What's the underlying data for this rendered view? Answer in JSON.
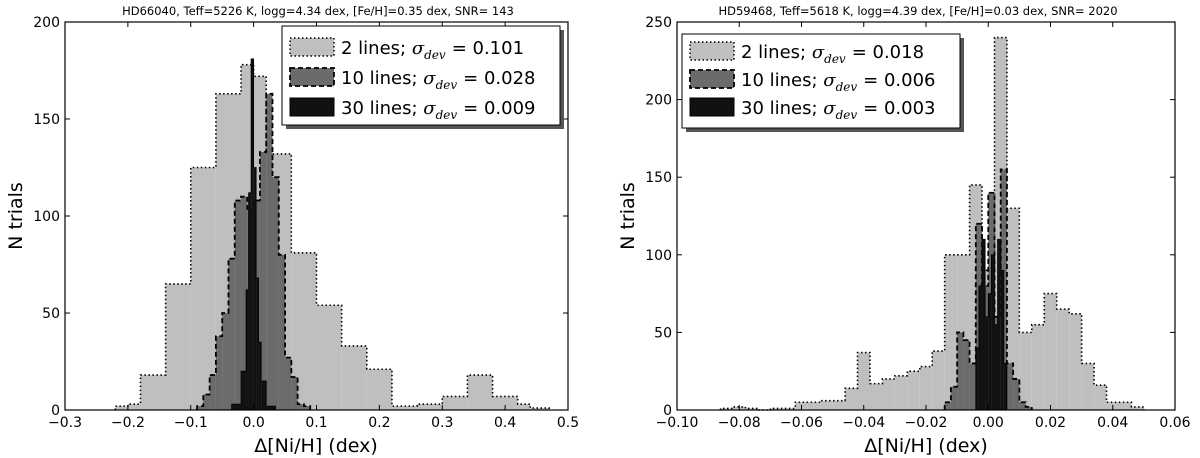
{
  "chart_data": [
    {
      "type": "bar",
      "title": "HD66040, Teff=5226 K, logg=4.34 dex, [Fe/H]=0.35 dex, SNR= 143",
      "xlabel": "Δ[Ni/H] (dex)",
      "ylabel": "N trials",
      "xlim": [
        -0.3,
        0.5
      ],
      "ylim": [
        0,
        200
      ],
      "xticks": [
        -0.3,
        -0.2,
        -0.1,
        0.0,
        0.1,
        0.2,
        0.3,
        0.4,
        0.5
      ],
      "yticks": [
        0,
        50,
        100,
        150,
        200
      ],
      "xtick_labels": [
        "−0.3",
        "−0.2",
        "−0.1",
        "0.0",
        "0.1",
        "0.2",
        "0.3",
        "0.4",
        "0.5"
      ],
      "ytick_labels": [
        "0",
        "50",
        "100",
        "150",
        "200"
      ],
      "legend_position": "top-right",
      "series": [
        {
          "name": "2 lines",
          "sigma_label": "σ",
          "sigma_sub": "dev",
          "sigma_value": "= 0.101",
          "color": "#bfbfbf",
          "edges": [
            -0.22,
            -0.2,
            -0.18,
            -0.14,
            -0.1,
            -0.06,
            -0.02,
            0.0,
            0.02,
            0.06,
            0.1,
            0.14,
            0.18,
            0.22,
            0.26,
            0.3,
            0.34,
            0.38,
            0.42,
            0.44,
            0.47
          ],
          "counts": [
            2,
            3,
            18,
            65,
            125,
            163,
            178,
            172,
            132,
            81,
            54,
            33,
            21,
            2,
            3,
            7,
            18,
            7,
            3,
            1
          ]
        },
        {
          "name": "10 lines",
          "sigma_label": "σ",
          "sigma_sub": "dev",
          "sigma_value": "= 0.028",
          "color": "#6b6b6b",
          "edges": [
            -0.09,
            -0.08,
            -0.07,
            -0.06,
            -0.05,
            -0.04,
            -0.03,
            -0.02,
            -0.01,
            0.0,
            0.01,
            0.02,
            0.03,
            0.04,
            0.05,
            0.06,
            0.07,
            0.08,
            0.09
          ],
          "counts": [
            2,
            8,
            18,
            38,
            50,
            78,
            108,
            110,
            103,
            108,
            133,
            163,
            120,
            80,
            27,
            17,
            3,
            2
          ]
        },
        {
          "name": "30 lines",
          "sigma_label": "σ",
          "sigma_sub": "dev",
          "sigma_value": "= 0.009",
          "color": "#111111",
          "edges": [
            -0.035,
            -0.02,
            -0.012,
            -0.008,
            -0.004,
            0.0,
            0.004,
            0.008,
            0.012,
            0.02,
            0.035
          ],
          "counts": [
            3,
            20,
            62,
            112,
            181,
            125,
            68,
            35,
            15,
            2
          ]
        }
      ]
    },
    {
      "type": "bar",
      "title": "HD59468, Teff=5618 K, logg=4.39 dex, [Fe/H]=0.03 dex, SNR= 2020",
      "xlabel": "Δ[Ni/H] (dex)",
      "ylabel": "N trials",
      "xlim": [
        -0.1,
        0.06
      ],
      "ylim": [
        0,
        250
      ],
      "xticks": [
        -0.1,
        -0.08,
        -0.06,
        -0.04,
        -0.02,
        0.0,
        0.02,
        0.04,
        0.06
      ],
      "yticks": [
        0,
        50,
        100,
        150,
        200,
        250
      ],
      "xtick_labels": [
        "−0.10",
        "−0.08",
        "−0.06",
        "−0.04",
        "−0.02",
        "0.00",
        "0.02",
        "0.04",
        "0.06"
      ],
      "ytick_labels": [
        "0",
        "50",
        "100",
        "150",
        "200",
        "250"
      ],
      "legend_position": "top-left",
      "series": [
        {
          "name": "2 lines",
          "sigma_label": "σ",
          "sigma_sub": "dev",
          "sigma_value": "= 0.018",
          "color": "#bfbfbf",
          "edges": [
            -0.086,
            -0.082,
            -0.078,
            -0.074,
            -0.07,
            -0.066,
            -0.062,
            -0.058,
            -0.054,
            -0.05,
            -0.046,
            -0.042,
            -0.038,
            -0.034,
            -0.03,
            -0.026,
            -0.022,
            -0.018,
            -0.014,
            -0.01,
            -0.006,
            -0.002,
            0.002,
            0.006,
            0.01,
            0.014,
            0.018,
            0.022,
            0.026,
            0.03,
            0.034,
            0.038,
            0.042,
            0.046,
            0.05
          ],
          "counts": [
            1,
            2,
            1,
            0,
            1,
            1,
            5,
            5,
            6,
            6,
            14,
            37,
            17,
            20,
            22,
            25,
            28,
            38,
            100,
            100,
            145,
            90,
            240,
            130,
            50,
            55,
            75,
            65,
            62,
            30,
            16,
            5,
            5,
            2
          ]
        },
        {
          "name": "10 lines",
          "sigma_label": "σ",
          "sigma_sub": "dev",
          "sigma_value": "= 0.006",
          "color": "#6b6b6b",
          "edges": [
            -0.014,
            -0.012,
            -0.01,
            -0.008,
            -0.006,
            -0.004,
            -0.002,
            0.0,
            0.002,
            0.004,
            0.006,
            0.008,
            0.01,
            0.012,
            0.014
          ],
          "counts": [
            5,
            15,
            50,
            45,
            30,
            120,
            80,
            140,
            60,
            155,
            30,
            20,
            5,
            2
          ]
        },
        {
          "name": "30 lines",
          "sigma_label": "σ",
          "sigma_sub": "dev",
          "sigma_value": "= 0.003",
          "color": "#111111",
          "edges": [
            -0.004,
            -0.003,
            -0.002,
            -0.001,
            0.0,
            0.001,
            0.002,
            0.003,
            0.004,
            0.005,
            0.006
          ],
          "counts": [
            40,
            80,
            110,
            60,
            75,
            100,
            55,
            110,
            90,
            30
          ]
        }
      ]
    }
  ]
}
